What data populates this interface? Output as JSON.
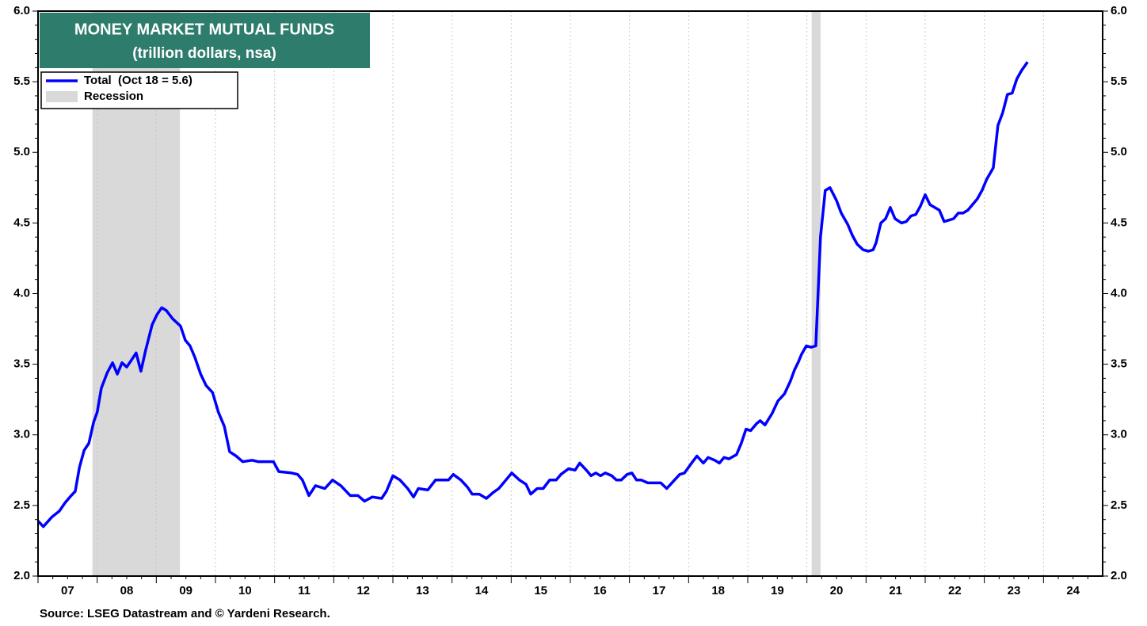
{
  "chart_data": {
    "type": "line",
    "title": "MONEY MARKET MUTUAL FUNDS",
    "subtitle": "(trillion dollars, nsa)",
    "source": "Source: LSEG Datastream and © Yardeni Research.",
    "xlim": [
      2007,
      2025
    ],
    "xticks": [
      {
        "value": 2007,
        "label": "07"
      },
      {
        "value": 2008,
        "label": "08"
      },
      {
        "value": 2009,
        "label": "09"
      },
      {
        "value": 2010,
        "label": "10"
      },
      {
        "value": 2011,
        "label": "11"
      },
      {
        "value": 2012,
        "label": "12"
      },
      {
        "value": 2013,
        "label": "13"
      },
      {
        "value": 2014,
        "label": "14"
      },
      {
        "value": 2015,
        "label": "15"
      },
      {
        "value": 2016,
        "label": "16"
      },
      {
        "value": 2017,
        "label": "17"
      },
      {
        "value": 2018,
        "label": "18"
      },
      {
        "value": 2019,
        "label": "19"
      },
      {
        "value": 2020,
        "label": "20"
      },
      {
        "value": 2021,
        "label": "21"
      },
      {
        "value": 2022,
        "label": "22"
      },
      {
        "value": 2023,
        "label": "23"
      },
      {
        "value": 2024,
        "label": "24"
      }
    ],
    "ylim": [
      2,
      6
    ],
    "yticks": [
      {
        "value": 2,
        "label": "2.0"
      },
      {
        "value": 2.5,
        "label": "2.5"
      },
      {
        "value": 3,
        "label": "3.0"
      },
      {
        "value": 3.5,
        "label": "3.5"
      },
      {
        "value": 4,
        "label": "4.0"
      },
      {
        "value": 4.5,
        "label": "4.5"
      },
      {
        "value": 5,
        "label": "5.0"
      },
      {
        "value": 5.5,
        "label": "5.5"
      },
      {
        "value": 6,
        "label": "6.0"
      }
    ],
    "grid": true,
    "recession": {
      "name": "Recession",
      "color": "#d9d9d9",
      "spans": [
        [
          2007.92,
          2009.4
        ],
        [
          2020.08,
          2020.23
        ]
      ]
    },
    "x": [
      2007.0,
      2007.09,
      2007.24,
      2007.36,
      2007.46,
      2007.54,
      2007.63,
      2007.7,
      2007.78,
      2007.86,
      2007.94,
      2008.0,
      2008.07,
      2008.17,
      2008.26,
      2008.34,
      2008.42,
      2008.5,
      2008.58,
      2008.66,
      2008.74,
      2008.82,
      2008.93,
      2009.01,
      2009.09,
      2009.17,
      2009.28,
      2009.41,
      2009.49,
      2009.57,
      2009.65,
      2009.75,
      2009.84,
      2009.95,
      2010.05,
      2010.15,
      2010.24,
      2010.35,
      2010.46,
      2010.62,
      2010.72,
      2010.86,
      2010.98,
      2011.07,
      2011.29,
      2011.39,
      2011.47,
      2011.58,
      2011.69,
      2011.85,
      2011.98,
      2012.12,
      2012.28,
      2012.41,
      2012.52,
      2012.65,
      2012.81,
      2012.89,
      2013.0,
      2013.12,
      2013.25,
      2013.35,
      2013.43,
      2013.59,
      2013.72,
      2013.8,
      2013.94,
      2014.02,
      2014.15,
      2014.26,
      2014.34,
      2014.46,
      2014.58,
      2014.69,
      2014.79,
      2015.01,
      2015.14,
      2015.25,
      2015.33,
      2015.44,
      2015.54,
      2015.65,
      2015.76,
      2015.84,
      2015.97,
      2016.08,
      2016.16,
      2016.27,
      2016.35,
      2016.43,
      2016.51,
      2016.59,
      2016.7,
      2016.78,
      2016.86,
      2016.96,
      2017.04,
      2017.12,
      2017.2,
      2017.31,
      2017.42,
      2017.53,
      2017.63,
      2017.74,
      2017.85,
      2017.93,
      2018.05,
      2018.14,
      2018.25,
      2018.33,
      2018.44,
      2018.52,
      2018.6,
      2018.68,
      2018.81,
      2018.89,
      2018.97,
      2019.05,
      2019.15,
      2019.21,
      2019.29,
      2019.41,
      2019.51,
      2019.62,
      2019.72,
      2019.79,
      2019.86,
      2019.91,
      2019.99,
      2020.07,
      2020.15,
      2020.23,
      2020.31,
      2020.39,
      2020.5,
      2020.58,
      2020.69,
      2020.77,
      2020.85,
      2020.95,
      2021.04,
      2021.12,
      2021.17,
      2021.25,
      2021.33,
      2021.41,
      2021.49,
      2021.6,
      2021.68,
      2021.76,
      2021.84,
      2021.92,
      2022.0,
      2022.08,
      2022.16,
      2022.24,
      2022.32,
      2022.4,
      2022.48,
      2022.56,
      2022.64,
      2022.72,
      2022.8,
      2022.88,
      2022.96,
      2023.04,
      2023.15,
      2023.23,
      2023.31,
      2023.39,
      2023.47,
      2023.55,
      2023.63,
      2023.73
    ],
    "series": [
      {
        "name": "Total  (Oct 18 = 5.6)",
        "color": "#0000ff",
        "values": [
          2.39,
          2.35,
          2.42,
          2.46,
          2.52,
          2.56,
          2.6,
          2.77,
          2.89,
          2.94,
          3.09,
          3.16,
          3.33,
          3.44,
          3.51,
          3.43,
          3.51,
          3.48,
          3.53,
          3.58,
          3.45,
          3.6,
          3.78,
          3.85,
          3.9,
          3.88,
          3.82,
          3.77,
          3.67,
          3.63,
          3.55,
          3.43,
          3.35,
          3.3,
          3.16,
          3.06,
          2.88,
          2.85,
          2.81,
          2.82,
          2.81,
          2.81,
          2.81,
          2.74,
          2.73,
          2.72,
          2.68,
          2.57,
          2.64,
          2.62,
          2.68,
          2.64,
          2.57,
          2.57,
          2.53,
          2.56,
          2.55,
          2.6,
          2.71,
          2.68,
          2.62,
          2.56,
          2.62,
          2.61,
          2.68,
          2.68,
          2.68,
          2.72,
          2.68,
          2.63,
          2.58,
          2.58,
          2.55,
          2.59,
          2.62,
          2.73,
          2.68,
          2.65,
          2.58,
          2.62,
          2.62,
          2.68,
          2.68,
          2.72,
          2.76,
          2.75,
          2.8,
          2.75,
          2.71,
          2.73,
          2.71,
          2.73,
          2.71,
          2.68,
          2.68,
          2.72,
          2.73,
          2.68,
          2.68,
          2.66,
          2.66,
          2.66,
          2.62,
          2.67,
          2.72,
          2.73,
          2.8,
          2.85,
          2.8,
          2.84,
          2.82,
          2.8,
          2.84,
          2.83,
          2.86,
          2.94,
          3.04,
          3.03,
          3.08,
          3.1,
          3.07,
          3.15,
          3.24,
          3.29,
          3.38,
          3.46,
          3.52,
          3.57,
          3.63,
          3.62,
          3.63,
          4.4,
          4.73,
          4.75,
          4.66,
          4.57,
          4.49,
          4.41,
          4.35,
          4.31,
          4.3,
          4.31,
          4.36,
          4.5,
          4.53,
          4.61,
          4.53,
          4.5,
          4.51,
          4.55,
          4.56,
          4.62,
          4.7,
          4.63,
          4.61,
          4.59,
          4.51,
          4.52,
          4.53,
          4.57,
          4.57,
          4.59,
          4.63,
          4.67,
          4.73,
          4.81,
          4.89,
          5.19,
          5.28,
          5.41,
          5.42,
          5.52,
          5.58,
          5.64
        ]
      }
    ]
  }
}
